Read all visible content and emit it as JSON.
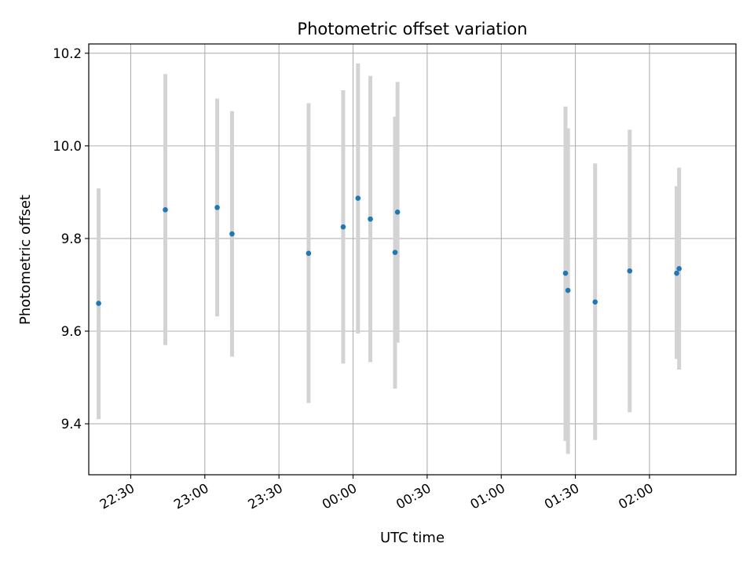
{
  "chart_data": {
    "type": "scatter",
    "title": "Photometric offset variation",
    "xlabel": "UTC time",
    "ylabel": "Photometric offset",
    "x_axis_kind": "time",
    "x_ticks": [
      "22:30",
      "23:00",
      "23:30",
      "00:00",
      "00:30",
      "01:00",
      "01:30",
      "02:00"
    ],
    "y_ticks": [
      "9.4",
      "9.6",
      "9.8",
      "10.0",
      "10.2"
    ],
    "xlim": [
      "22:13",
      "02:35"
    ],
    "ylim": [
      9.29,
      10.22
    ],
    "grid": true,
    "colors": {
      "marker": "#1f77b4",
      "errorbar": "#d3d3d3",
      "grid": "#b0b0b0",
      "axes": "#000000"
    },
    "points": [
      {
        "x": "22:17",
        "y": 9.66,
        "ylow": 9.41,
        "yhigh": 9.908
      },
      {
        "x": "22:44",
        "y": 9.862,
        "ylow": 9.57,
        "yhigh": 10.155
      },
      {
        "x": "23:05",
        "y": 9.867,
        "ylow": 9.632,
        "yhigh": 10.102
      },
      {
        "x": "23:11",
        "y": 9.81,
        "ylow": 9.545,
        "yhigh": 10.075
      },
      {
        "x": "23:42",
        "y": 9.768,
        "ylow": 9.445,
        "yhigh": 10.092
      },
      {
        "x": "23:56",
        "y": 9.825,
        "ylow": 9.53,
        "yhigh": 10.12
      },
      {
        "x": "00:02",
        "y": 9.887,
        "ylow": 9.595,
        "yhigh": 10.178
      },
      {
        "x": "00:07",
        "y": 9.842,
        "ylow": 9.533,
        "yhigh": 10.151
      },
      {
        "x": "00:17",
        "y": 9.77,
        "ylow": 9.476,
        "yhigh": 10.063
      },
      {
        "x": "00:18",
        "y": 9.857,
        "ylow": 9.575,
        "yhigh": 10.138
      },
      {
        "x": "01:26",
        "y": 9.725,
        "ylow": 9.363,
        "yhigh": 10.085
      },
      {
        "x": "01:27",
        "y": 9.688,
        "ylow": 9.335,
        "yhigh": 10.038
      },
      {
        "x": "01:38",
        "y": 9.663,
        "ylow": 9.365,
        "yhigh": 9.962
      },
      {
        "x": "01:52",
        "y": 9.73,
        "ylow": 9.425,
        "yhigh": 10.035
      },
      {
        "x": "02:11",
        "y": 9.725,
        "ylow": 9.54,
        "yhigh": 9.913
      },
      {
        "x": "02:12",
        "y": 9.735,
        "ylow": 9.517,
        "yhigh": 9.953
      }
    ]
  }
}
